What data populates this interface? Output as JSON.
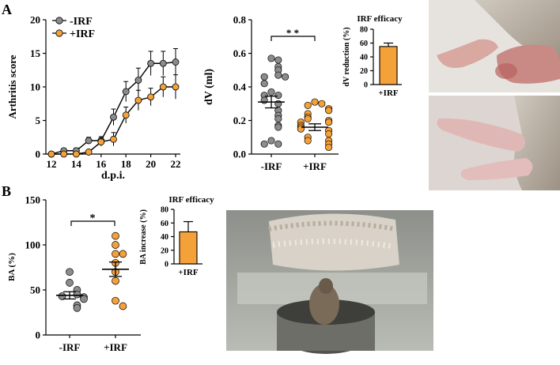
{
  "panels": {
    "a": "A",
    "b": "B"
  },
  "colors": {
    "neg": "#8c8c8c",
    "pos": "#f5a13a",
    "bar": "#f5a13a",
    "photo_bg": "#d9d6d0"
  },
  "chart_data": [
    {
      "type": "line",
      "id": "arthritis",
      "title": "",
      "xlabel": "d.p.i.",
      "ylabel": "Arthritis score",
      "xlim": [
        12,
        22
      ],
      "ylim": [
        0,
        20
      ],
      "xticks": [
        12,
        14,
        16,
        18,
        20,
        22
      ],
      "yticks": [
        0,
        5,
        10,
        15,
        20
      ],
      "legend": [
        "-IRF",
        "+IRF"
      ],
      "x": [
        12,
        13,
        14,
        15,
        16,
        17,
        18,
        19,
        20,
        21,
        22
      ],
      "series": [
        {
          "name": "-IRF",
          "values": [
            0,
            0.5,
            0.5,
            2,
            2,
            5.5,
            9.3,
            11,
            13.5,
            13.5,
            13.7
          ],
          "errors": [
            0,
            0.3,
            0.4,
            0.5,
            0.6,
            1.2,
            1.5,
            1.8,
            1.8,
            1.8,
            2
          ]
        },
        {
          "name": "+IRF",
          "values": [
            0,
            0,
            0,
            0.3,
            1.8,
            2.2,
            5.8,
            8,
            8.5,
            10,
            10
          ],
          "errors": [
            0,
            0,
            0,
            0.3,
            0.6,
            1,
            1.2,
            1.5,
            1.3,
            1.5,
            1.8
          ]
        }
      ]
    },
    {
      "type": "scatter",
      "id": "dv",
      "title": "",
      "xlabel": "",
      "ylabel": "dV (ml)",
      "ylim": [
        0,
        0.8
      ],
      "yticks": [
        0.0,
        0.2,
        0.4,
        0.6,
        0.8
      ],
      "ytick_labels": [
        "0.0",
        "0.2",
        "0.4",
        "0.6",
        "0.8"
      ],
      "categories": [
        "-IRF",
        "+IRF"
      ],
      "significance": "* *",
      "series": [
        {
          "name": "-IRF",
          "values": [
            0.57,
            0.56,
            0.52,
            0.5,
            0.47,
            0.46,
            0.46,
            0.42,
            0.37,
            0.35,
            0.35,
            0.32,
            0.3,
            0.26,
            0.23,
            0.21,
            0.17,
            0.16,
            0.08,
            0.06,
            0.06
          ],
          "mean": 0.31,
          "sem": 0.035
        },
        {
          "name": "+IRF",
          "values": [
            0.31,
            0.3,
            0.29,
            0.27,
            0.26,
            0.24,
            0.22,
            0.21,
            0.2,
            0.19,
            0.19,
            0.17,
            0.16,
            0.15,
            0.14,
            0.12,
            0.1,
            0.08,
            0.08,
            0.06,
            0.04
          ],
          "mean": 0.16,
          "sem": 0.02
        }
      ]
    },
    {
      "type": "bar",
      "id": "dv_efficacy",
      "title": "IRF efficacy",
      "ylabel": "dV reduction (%)",
      "ylim": [
        0,
        80
      ],
      "yticks": [
        0,
        20,
        40,
        60,
        80
      ],
      "categories": [
        "+IRF"
      ],
      "values": [
        55
      ],
      "errors": [
        5
      ]
    },
    {
      "type": "scatter",
      "id": "ba",
      "title": "",
      "ylabel": "BA (%)",
      "ylim": [
        0,
        150
      ],
      "yticks": [
        0,
        50,
        100,
        150
      ],
      "categories": [
        "-IRF",
        "+IRF"
      ],
      "significance": "*",
      "series": [
        {
          "name": "-IRF",
          "values": [
            70,
            58,
            50,
            45,
            43,
            42,
            40,
            33,
            30
          ],
          "mean": 44,
          "sem": 4
        },
        {
          "name": "+IRF",
          "values": [
            110,
            100,
            90,
            90,
            80,
            70,
            60,
            38,
            32
          ],
          "mean": 73,
          "sem": 8
        }
      ]
    },
    {
      "type": "bar",
      "id": "ba_efficacy",
      "title": "IRF efficacy",
      "ylabel": "BA increase (%)",
      "ylim": [
        0,
        80
      ],
      "yticks": [
        0,
        20,
        40,
        60,
        80
      ],
      "categories": [
        "+IRF"
      ],
      "values": [
        47
      ],
      "errors": [
        15
      ]
    }
  ]
}
